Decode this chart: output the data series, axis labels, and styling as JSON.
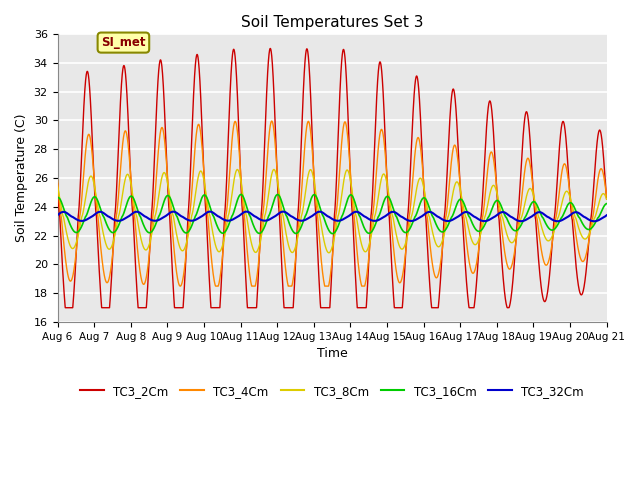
{
  "title": "Soil Temperatures Set 3",
  "xlabel": "Time",
  "ylabel": "Soil Temperature (C)",
  "ylim": [
    16,
    36
  ],
  "xlim": [
    0,
    15
  ],
  "fig_bg_color": "#ffffff",
  "plot_bg_color": "#e8e8e8",
  "grid_color": "#ffffff",
  "series": {
    "TC3_2Cm": {
      "color": "#cc0000",
      "lw": 1.0
    },
    "TC3_4Cm": {
      "color": "#ff8800",
      "lw": 1.0
    },
    "TC3_8Cm": {
      "color": "#ddcc00",
      "lw": 1.0
    },
    "TC3_16Cm": {
      "color": "#00cc00",
      "lw": 1.2
    },
    "TC3_32Cm": {
      "color": "#0000cc",
      "lw": 1.5
    }
  },
  "xtick_labels": [
    "Aug 6",
    "Aug 7",
    "Aug 8",
    "Aug 9",
    "Aug 10",
    "Aug 11",
    "Aug 12",
    "Aug 13",
    "Aug 14",
    "Aug 15",
    "Aug 16",
    "Aug 17",
    "Aug 18",
    "Aug 19",
    "Aug 20",
    "Aug 21"
  ],
  "xtick_positions": [
    0,
    1,
    2,
    3,
    4,
    5,
    6,
    7,
    8,
    9,
    10,
    11,
    12,
    13,
    14,
    15
  ],
  "annotation_text": "SI_met",
  "yticks": [
    16,
    18,
    20,
    22,
    24,
    26,
    28,
    30,
    32,
    34,
    36
  ]
}
